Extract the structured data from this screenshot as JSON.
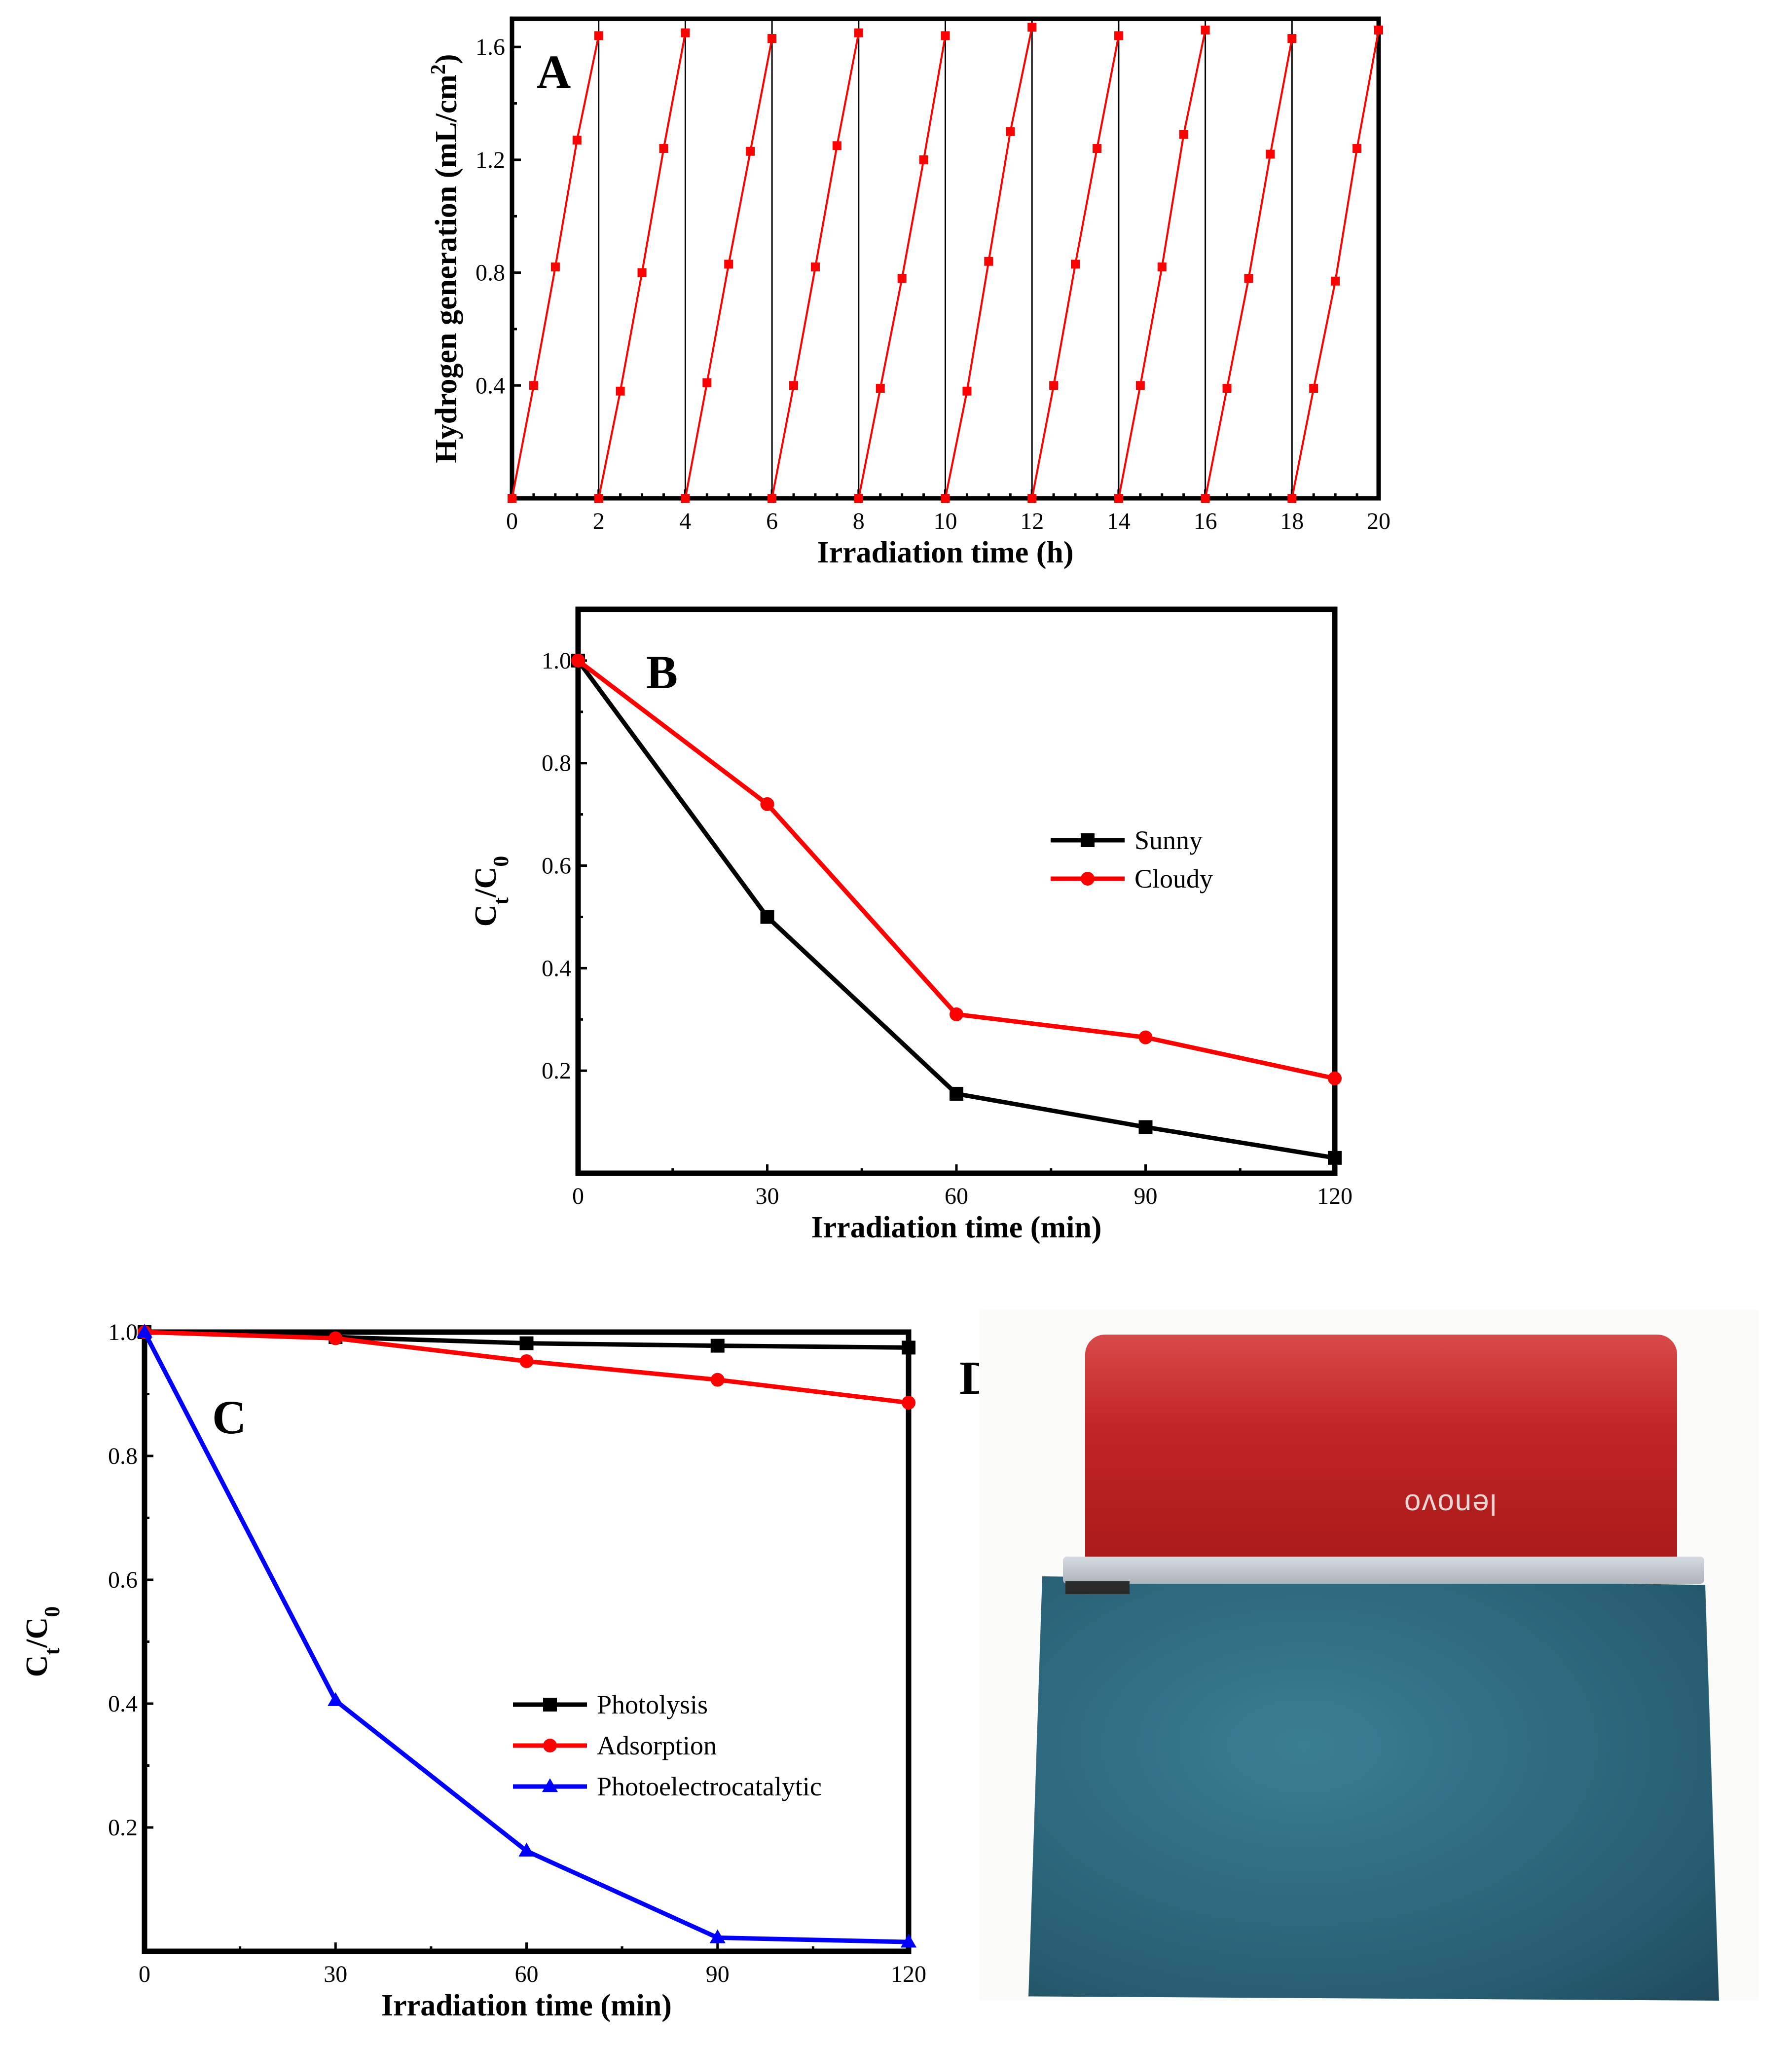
{
  "chart_data": [
    {
      "panel": "A",
      "type": "line",
      "xlabel": "Irradiation time (h)",
      "ylabel": "Hydrogen generation (mL/cm²)",
      "xlim": [
        0,
        20
      ],
      "ylim": [
        0,
        1.7
      ],
      "xticks": [
        0,
        2,
        4,
        6,
        8,
        10,
        12,
        14,
        16,
        18,
        20
      ],
      "yticks": [
        0.4,
        0.8,
        1.2,
        1.6
      ],
      "cycle_separators": [
        2,
        4,
        6,
        8,
        10,
        12,
        14,
        16,
        18
      ],
      "series": [
        {
          "name": "cycles",
          "color": "#ff0000",
          "cycles": [
            {
              "x": [
                0,
                0.5,
                1,
                1.5,
                2
              ],
              "y": [
                0,
                0.4,
                0.82,
                1.27,
                1.64
              ]
            },
            {
              "x": [
                2,
                2.5,
                3,
                3.5,
                4
              ],
              "y": [
                0,
                0.38,
                0.8,
                1.24,
                1.65
              ]
            },
            {
              "x": [
                4,
                4.5,
                5,
                5.5,
                6
              ],
              "y": [
                0,
                0.41,
                0.83,
                1.23,
                1.63
              ]
            },
            {
              "x": [
                6,
                6.5,
                7,
                7.5,
                8
              ],
              "y": [
                0,
                0.4,
                0.82,
                1.25,
                1.65
              ]
            },
            {
              "x": [
                8,
                8.5,
                9,
                9.5,
                10
              ],
              "y": [
                0,
                0.39,
                0.78,
                1.2,
                1.64
              ]
            },
            {
              "x": [
                10,
                10.5,
                11,
                11.5,
                12
              ],
              "y": [
                0,
                0.38,
                0.84,
                1.3,
                1.67
              ]
            },
            {
              "x": [
                12,
                12.5,
                13,
                13.5,
                14
              ],
              "y": [
                0,
                0.4,
                0.83,
                1.24,
                1.64
              ]
            },
            {
              "x": [
                14,
                14.5,
                15,
                15.5,
                16
              ],
              "y": [
                0,
                0.4,
                0.82,
                1.29,
                1.66
              ]
            },
            {
              "x": [
                16,
                16.5,
                17,
                17.5,
                18
              ],
              "y": [
                0,
                0.39,
                0.78,
                1.22,
                1.63
              ]
            },
            {
              "x": [
                18,
                18.5,
                19,
                19.5,
                20
              ],
              "y": [
                0,
                0.39,
                0.77,
                1.24,
                1.66
              ]
            }
          ]
        }
      ]
    },
    {
      "panel": "B",
      "type": "line",
      "xlabel": "Irradiation time (min)",
      "ylabel": "Ct/C0",
      "xlim": [
        0,
        120
      ],
      "ylim": [
        0,
        1.1
      ],
      "xticks": [
        0,
        30,
        60,
        90,
        120
      ],
      "yticks": [
        0.2,
        0.4,
        0.6,
        0.8,
        1.0
      ],
      "legend_position": "center-right",
      "x": [
        0,
        30,
        60,
        90,
        120
      ],
      "series": [
        {
          "name": "Sunny",
          "color": "#000000",
          "marker": "square",
          "values": [
            1.0,
            0.5,
            0.155,
            0.09,
            0.03
          ]
        },
        {
          "name": "Cloudy",
          "color": "#ff0000",
          "marker": "circle",
          "values": [
            1.0,
            0.72,
            0.31,
            0.265,
            0.185
          ]
        }
      ]
    },
    {
      "panel": "C",
      "type": "line",
      "xlabel": "Irradiation time (min)",
      "ylabel": "Ct/C0",
      "xlim": [
        0,
        120
      ],
      "ylim": [
        0,
        1.0
      ],
      "xticks": [
        0,
        30,
        60,
        90,
        120
      ],
      "yticks": [
        0.2,
        0.4,
        0.6,
        0.8,
        1.0
      ],
      "legend_position": "bottom-right",
      "x": [
        0,
        30,
        60,
        90,
        120
      ],
      "series": [
        {
          "name": "Photolysis",
          "color": "#000000",
          "marker": "square",
          "values": [
            1.0,
            0.992,
            0.982,
            0.978,
            0.975
          ]
        },
        {
          "name": "Adsorption",
          "color": "#ff0000",
          "marker": "circle",
          "values": [
            1.0,
            0.99,
            0.953,
            0.923,
            0.886
          ]
        },
        {
          "name": "Photoelectrocatalytic",
          "color": "#0000ff",
          "marker": "triangle",
          "values": [
            1.0,
            0.405,
            0.162,
            0.022,
            0.015
          ]
        }
      ]
    }
  ],
  "panel_labels": {
    "a": "A",
    "b": "B",
    "c": "C",
    "d": "D"
  },
  "photo": {
    "brand_text": "lenovo"
  }
}
